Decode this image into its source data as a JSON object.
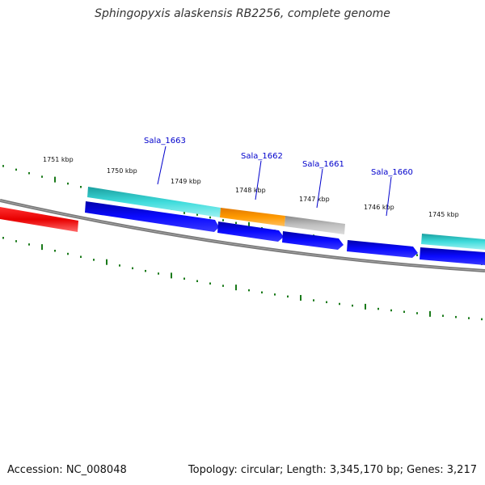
{
  "title": "Sphingopyxis alaskensis RB2256, complete genome",
  "footer": {
    "accession": "Accession: NC_008048",
    "topology": "Topology: circular; Length: 3,345,170 bp; Genes: 3,217"
  },
  "ruler": {
    "labels": [
      "1751 kbp",
      "1750 kbp",
      "1749 kbp",
      "1748 kbp",
      "1747 kbp",
      "1746 kbp",
      "1745 kbp"
    ],
    "tick_color": "#1a7a1a"
  },
  "gene_labels": [
    "Sala_1663",
    "Sala_1662",
    "Sala_1661",
    "Sala_1660"
  ],
  "colors": {
    "backbone": "#7a7a7a",
    "cds_blue": "#0000ee",
    "feature_cyan": "#22cccc",
    "feature_orange": "#ff9900",
    "feature_gray": "#bbbbbb",
    "feature_red": "#ee0000",
    "label_blue": "#0000cc"
  }
}
